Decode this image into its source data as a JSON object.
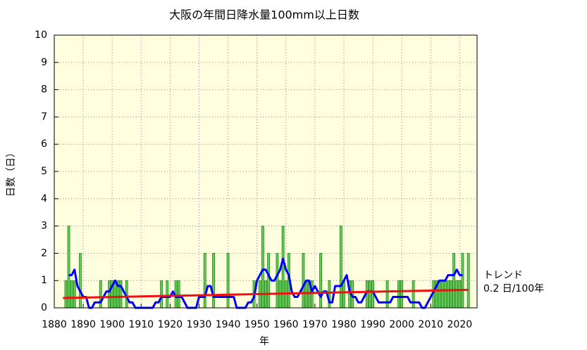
{
  "chart_data": {
    "type": "bar",
    "title": "大阪の年間日降水量100mm以上日数",
    "xlabel": "年",
    "ylabel": "日数（日）",
    "x": [
      1883,
      1884,
      1885,
      1886,
      1887,
      1888,
      1889,
      1890,
      1891,
      1892,
      1893,
      1894,
      1895,
      1896,
      1897,
      1898,
      1899,
      1900,
      1901,
      1902,
      1903,
      1904,
      1905,
      1906,
      1907,
      1908,
      1909,
      1910,
      1911,
      1912,
      1913,
      1914,
      1915,
      1916,
      1917,
      1918,
      1919,
      1920,
      1921,
      1922,
      1923,
      1924,
      1925,
      1926,
      1927,
      1928,
      1929,
      1930,
      1931,
      1932,
      1933,
      1934,
      1935,
      1936,
      1937,
      1938,
      1939,
      1940,
      1941,
      1942,
      1943,
      1944,
      1945,
      1946,
      1947,
      1948,
      1949,
      1950,
      1951,
      1952,
      1953,
      1954,
      1955,
      1956,
      1957,
      1958,
      1959,
      1960,
      1961,
      1962,
      1963,
      1964,
      1965,
      1966,
      1967,
      1968,
      1969,
      1970,
      1971,
      1972,
      1973,
      1974,
      1975,
      1976,
      1977,
      1978,
      1979,
      1980,
      1981,
      1982,
      1983,
      1984,
      1985,
      1986,
      1987,
      1988,
      1989,
      1990,
      1991,
      1992,
      1993,
      1994,
      1995,
      1996,
      1997,
      1998,
      1999,
      2000,
      2001,
      2002,
      2003,
      2004,
      2005,
      2006,
      2007,
      2008,
      2009,
      2010,
      2011,
      2012,
      2013,
      2014,
      2015,
      2016,
      2017,
      2018,
      2019,
      2020,
      2021,
      2022,
      2023
    ],
    "values": [
      0,
      1,
      3,
      1,
      1,
      0,
      2,
      0,
      0,
      0,
      0,
      0,
      0,
      1,
      0,
      0,
      1,
      1,
      1,
      1,
      1,
      0,
      1,
      0,
      0,
      0,
      0,
      0,
      0,
      0,
      0,
      0,
      0,
      0,
      1,
      0,
      1,
      0,
      0,
      1,
      1,
      0,
      0,
      0,
      0,
      0,
      0,
      0,
      0,
      2,
      0,
      0,
      2,
      0,
      0,
      0,
      0,
      2,
      0,
      0,
      0,
      0,
      0,
      0,
      0,
      0,
      1,
      0,
      1,
      3,
      1,
      2,
      0,
      0,
      2,
      1,
      3,
      1,
      2,
      0,
      0,
      0,
      0,
      2,
      1,
      1,
      1,
      0,
      0,
      2,
      0,
      0,
      1,
      0,
      0,
      0,
      3,
      1,
      0,
      1,
      1,
      0,
      0,
      0,
      0,
      1,
      1,
      1,
      0,
      0,
      0,
      0,
      1,
      0,
      0,
      0,
      1,
      1,
      0,
      0,
      0,
      1,
      0,
      0,
      0,
      0,
      0,
      0,
      1,
      1,
      1,
      1,
      1,
      1,
      1,
      2,
      1,
      1,
      2,
      0,
      2
    ],
    "color": "#66cc55",
    "edge_color": "#228822",
    "average": {
      "color": "#0000ff",
      "x": [
        1885,
        1886,
        1887,
        1888,
        1889,
        1890,
        1891,
        1892,
        1893,
        1894,
        1895,
        1896,
        1897,
        1898,
        1899,
        1900,
        1901,
        1902,
        1903,
        1904,
        1905,
        1906,
        1907,
        1908,
        1909,
        1910,
        1911,
        1912,
        1913,
        1914,
        1915,
        1916,
        1917,
        1918,
        1919,
        1920,
        1921,
        1922,
        1923,
        1924,
        1925,
        1926,
        1927,
        1928,
        1929,
        1930,
        1931,
        1932,
        1933,
        1934,
        1935,
        1936,
        1937,
        1938,
        1939,
        1940,
        1941,
        1942,
        1943,
        1944,
        1945,
        1946,
        1947,
        1948,
        1949,
        1950,
        1951,
        1952,
        1953,
        1954,
        1955,
        1956,
        1957,
        1958,
        1959,
        1960,
        1961,
        1962,
        1963,
        1964,
        1965,
        1966,
        1967,
        1968,
        1969,
        1970,
        1971,
        1972,
        1973,
        1974,
        1975,
        1976,
        1977,
        1978,
        1979,
        1980,
        1981,
        1982,
        1983,
        1984,
        1985,
        1986,
        1987,
        1988,
        1989,
        1990,
        1991,
        1992,
        1993,
        1994,
        1995,
        1996,
        1997,
        1998,
        1999,
        2000,
        2001,
        2002,
        2003,
        2004,
        2005,
        2006,
        2007,
        2008,
        2009,
        2010,
        2011,
        2012,
        2013,
        2014,
        2015,
        2016,
        2017,
        2018,
        2019,
        2020,
        2021
      ],
      "values": [
        1.2,
        1.2,
        1.4,
        0.8,
        0.6,
        0.4,
        0.4,
        0,
        0,
        0.2,
        0.2,
        0.2,
        0.4,
        0.6,
        0.6,
        0.8,
        1.0,
        0.8,
        0.8,
        0.6,
        0.4,
        0.2,
        0.2,
        0,
        0,
        0,
        0,
        0,
        0,
        0,
        0.2,
        0.2,
        0.4,
        0.4,
        0.4,
        0.4,
        0.6,
        0.4,
        0.4,
        0.4,
        0.2,
        0,
        0,
        0,
        0,
        0.4,
        0.4,
        0.4,
        0.8,
        0.8,
        0.4,
        0.4,
        0.4,
        0.4,
        0.4,
        0.4,
        0.4,
        0.4,
        0,
        0,
        0,
        0,
        0.2,
        0.2,
        0.4,
        1.0,
        1.2,
        1.4,
        1.4,
        1.2,
        1.0,
        1.0,
        1.2,
        1.4,
        1.8,
        1.4,
        1.2,
        0.6,
        0.4,
        0.4,
        0.6,
        0.8,
        1.0,
        1.0,
        0.6,
        0.8,
        0.6,
        0.4,
        0.6,
        0.6,
        0.2,
        0.2,
        0.8,
        0.8,
        0.8,
        1.0,
        1.2,
        0.6,
        0.4,
        0.4,
        0.2,
        0.2,
        0.4,
        0.6,
        0.6,
        0.6,
        0.4,
        0.2,
        0.2,
        0.2,
        0.2,
        0.2,
        0.4,
        0.4,
        0.4,
        0.4,
        0.4,
        0.4,
        0.2,
        0.2,
        0.2,
        0.2,
        0,
        0,
        0.2,
        0.4,
        0.6,
        0.8,
        1.0,
        1.0,
        1.0,
        1.2,
        1.2,
        1.2,
        1.4,
        1.2,
        1.2
      ]
    },
    "trend": {
      "color": "#ee1111",
      "x": [
        1883,
        2023
      ],
      "values": [
        0.36,
        0.66
      ],
      "label": "トレンド",
      "rate": "0.2 日/100年"
    },
    "xlim": [
      1880,
      2026
    ],
    "ylim": [
      0,
      10
    ],
    "xticks": [
      1880,
      1890,
      1900,
      1910,
      1920,
      1930,
      1940,
      1950,
      1960,
      1970,
      1980,
      1990,
      2000,
      2010,
      2020
    ],
    "yticks": [
      0,
      1,
      2,
      3,
      4,
      5,
      6,
      7,
      8,
      9,
      10
    ],
    "grid": true,
    "background": "#ffffe0"
  }
}
